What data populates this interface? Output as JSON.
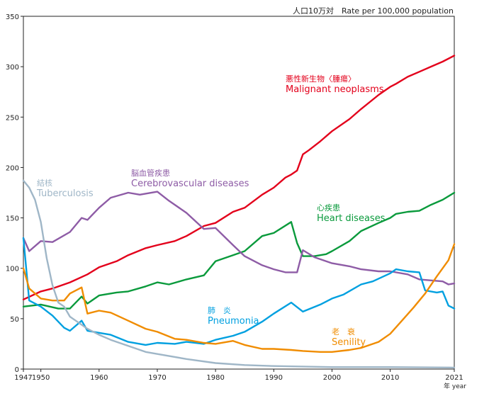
{
  "chart_data": {
    "type": "line",
    "unit_label": "人口10万対　Rate per 100,000 population",
    "xlim": [
      1947,
      2021
    ],
    "ylim": [
      0,
      350
    ],
    "y_ticks": [
      0,
      50,
      100,
      150,
      200,
      250,
      300,
      350
    ],
    "x_ticks": [
      1947,
      1950,
      1960,
      1970,
      1980,
      1990,
      2000,
      2010,
      2021
    ],
    "x_tick_labels": [
      "1947",
      "1950",
      "1960",
      "1970",
      "1980",
      "1990",
      "2000",
      "2010",
      "2021"
    ],
    "x_unit_label": "年 year",
    "grid": false,
    "series": [
      {
        "key": "malignant",
        "name_ja": "悪性新生物〈腫瘍〉",
        "name_en": "Malignant neoplasms",
        "color": "#e3001b",
        "x": [
          1947,
          1950,
          1952,
          1955,
          1958,
          1960,
          1963,
          1965,
          1968,
          1970,
          1973,
          1975,
          1978,
          1980,
          1983,
          1985,
          1988,
          1990,
          1992,
          1993,
          1994,
          1995,
          1996,
          1998,
          2000,
          2003,
          2005,
          2008,
          2010,
          2011,
          2013,
          2015,
          2017,
          2019,
          2021
        ],
        "values": [
          69,
          77,
          80,
          86,
          94,
          101,
          107,
          113,
          120,
          123,
          127,
          132,
          142,
          145,
          156,
          160,
          173,
          180,
          190,
          193,
          197,
          213,
          217,
          226,
          236,
          248,
          258,
          272,
          280,
          283,
          290,
          295,
          300,
          305,
          311
        ]
      },
      {
        "key": "heart",
        "name_ja": "心疾患",
        "name_en": "Heart diseases",
        "color": "#0a9a3c",
        "x": [
          1947,
          1950,
          1953,
          1955,
          1957,
          1958,
          1960,
          1963,
          1965,
          1968,
          1970,
          1972,
          1975,
          1978,
          1980,
          1983,
          1985,
          1988,
          1990,
          1993,
          1994,
          1995,
          1997,
          1999,
          2000,
          2003,
          2005,
          2008,
          2010,
          2011,
          2013,
          2015,
          2017,
          2019,
          2021
        ],
        "values": [
          62,
          64,
          60,
          60,
          72,
          65,
          73,
          76,
          77,
          82,
          86,
          84,
          89,
          93,
          107,
          113,
          117,
          132,
          135,
          146,
          125,
          112,
          112,
          114,
          117,
          127,
          137,
          145,
          150,
          154,
          156,
          157,
          163,
          168,
          175
        ]
      },
      {
        "key": "cerebro",
        "name_ja": "脳血管疾患",
        "name_en": "Cerebrovascular diseases",
        "color": "#8e5ca6",
        "x": [
          1947,
          1948,
          1950,
          1952,
          1955,
          1957,
          1958,
          1960,
          1962,
          1965,
          1967,
          1970,
          1972,
          1975,
          1978,
          1980,
          1983,
          1985,
          1988,
          1990,
          1992,
          1994,
          1995,
          1997,
          2000,
          2003,
          2005,
          2008,
          2010,
          2013,
          2015,
          2017,
          2019,
          2020,
          2021
        ],
        "values": [
          130,
          117,
          127,
          126,
          136,
          150,
          148,
          160,
          170,
          175,
          173,
          176,
          167,
          155,
          139,
          140,
          123,
          112,
          103,
          99,
          96,
          96,
          118,
          111,
          105,
          102,
          99,
          97,
          97,
          94,
          89,
          88,
          87,
          84,
          85
        ]
      },
      {
        "key": "pneumonia",
        "name_ja": "肺　炎",
        "name_en": "Pneumonia",
        "color": "#00a0e0",
        "x": [
          1947,
          1948,
          1950,
          1952,
          1954,
          1955,
          1957,
          1958,
          1960,
          1962,
          1965,
          1968,
          1970,
          1973,
          1975,
          1978,
          1980,
          1983,
          1985,
          1988,
          1990,
          1993,
          1995,
          1998,
          2000,
          2002,
          2005,
          2007,
          2010,
          2011,
          2013,
          2015,
          2016,
          2018,
          2019,
          2020,
          2021
        ],
        "values": [
          130,
          68,
          62,
          53,
          41,
          38,
          48,
          38,
          36,
          34,
          27,
          24,
          26,
          25,
          27,
          25,
          29,
          33,
          37,
          47,
          55,
          66,
          57,
          64,
          70,
          74,
          84,
          87,
          95,
          99,
          97,
          96,
          78,
          76,
          77,
          63,
          60
        ]
      },
      {
        "key": "senility",
        "name_ja": "老　衰",
        "name_en": "Senility",
        "color": "#f08c00",
        "x": [
          1947,
          1948,
          1950,
          1952,
          1954,
          1955,
          1957,
          1958,
          1960,
          1962,
          1965,
          1968,
          1970,
          1973,
          1975,
          1978,
          1980,
          1983,
          1985,
          1988,
          1990,
          1993,
          1995,
          1998,
          2000,
          2003,
          2005,
          2008,
          2010,
          2012,
          2014,
          2016,
          2018,
          2020,
          2021
        ],
        "values": [
          100,
          80,
          70,
          68,
          68,
          75,
          81,
          55,
          58,
          56,
          48,
          40,
          37,
          30,
          29,
          26,
          25,
          28,
          24,
          20,
          20,
          19,
          18,
          17,
          17,
          19,
          21,
          27,
          35,
          48,
          61,
          75,
          92,
          108,
          124
        ]
      },
      {
        "key": "tb",
        "name_ja": "結核",
        "name_en": "Tuberculosis",
        "color": "#9fb6c7",
        "x": [
          1947,
          1948,
          1949,
          1950,
          1951,
          1952,
          1953,
          1954,
          1955,
          1956,
          1958,
          1960,
          1962,
          1965,
          1968,
          1970,
          1975,
          1980,
          1985,
          1990,
          2000,
          2010,
          2021
        ],
        "values": [
          187,
          180,
          168,
          146,
          110,
          83,
          66,
          62,
          52,
          48,
          40,
          34,
          29,
          23,
          17,
          15,
          10,
          6,
          4,
          3,
          2,
          2,
          1.5
        ]
      }
    ]
  }
}
